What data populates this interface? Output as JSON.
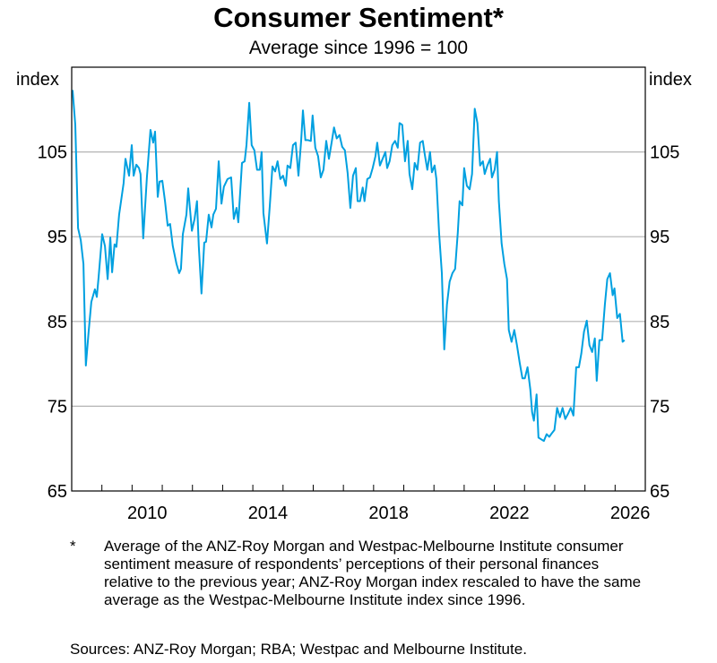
{
  "chart_data": {
    "type": "line",
    "title": "Consumer Sentiment*",
    "subtitle": "Average since 1996 = 100",
    "ylabel_left": "index",
    "ylabel_right": "index",
    "xlim": [
      2008,
      2027
    ],
    "ylim": [
      65,
      115
    ],
    "yticks": [
      65,
      75,
      85,
      95,
      105
    ],
    "xtick_labels": [
      "2010",
      "2014",
      "2018",
      "2022",
      "2026"
    ],
    "grid": true,
    "line_color": "#00a0e0",
    "series": [
      {
        "x": [
          2008.03,
          2008.12,
          2008.21,
          2008.3,
          2008.39,
          2008.47,
          2008.56,
          2008.65,
          2008.77,
          2008.83,
          2008.89,
          2009.01,
          2009.1,
          2009.19,
          2009.28,
          2009.34,
          2009.42,
          2009.48,
          2009.57,
          2009.72,
          2009.78,
          2009.9,
          2009.99,
          2010.05,
          2010.14,
          2010.23,
          2010.28,
          2010.37,
          2010.49,
          2010.61,
          2010.7,
          2010.76,
          2010.85,
          2010.91,
          2011.0,
          2011.09,
          2011.18,
          2011.26,
          2011.35,
          2011.47,
          2011.56,
          2011.62,
          2011.68,
          2011.8,
          2011.86,
          2011.98,
          2012.07,
          2012.15,
          2012.21,
          2012.3,
          2012.39,
          2012.45,
          2012.54,
          2012.63,
          2012.69,
          2012.78,
          2012.87,
          2012.96,
          2013.04,
          2013.16,
          2013.28,
          2013.37,
          2013.46,
          2013.52,
          2013.64,
          2013.73,
          2013.79,
          2013.88,
          2013.96,
          2014.05,
          2014.14,
          2014.23,
          2014.29,
          2014.35,
          2014.47,
          2014.56,
          2014.65,
          2014.74,
          2014.82,
          2014.91,
          2015.0,
          2015.09,
          2015.15,
          2015.24,
          2015.33,
          2015.42,
          2015.51,
          2015.6,
          2015.66,
          2015.74,
          2015.83,
          2015.92,
          2015.98,
          2016.07,
          2016.16,
          2016.25,
          2016.34,
          2016.43,
          2016.52,
          2016.61,
          2016.69,
          2016.78,
          2016.87,
          2016.96,
          2017.05,
          2017.14,
          2017.23,
          2017.32,
          2017.41,
          2017.47,
          2017.55,
          2017.64,
          2017.7,
          2017.79,
          2017.88,
          2017.97,
          2018.06,
          2018.12,
          2018.21,
          2018.3,
          2018.39,
          2018.45,
          2018.53,
          2018.62,
          2018.71,
          2018.8,
          2018.86,
          2018.95,
          2019.04,
          2019.13,
          2019.19,
          2019.28,
          2019.36,
          2019.45,
          2019.54,
          2019.63,
          2019.69,
          2019.78,
          2019.87,
          2019.93,
          2020.02,
          2020.08,
          2020.17,
          2020.26,
          2020.34,
          2020.43,
          2020.52,
          2020.61,
          2020.7,
          2020.79,
          2020.85,
          2020.94,
          2021.0,
          2021.09,
          2021.18,
          2021.26,
          2021.35,
          2021.44,
          2021.53,
          2021.62,
          2021.68,
          2021.77,
          2021.86,
          2021.92,
          2022.01,
          2022.09,
          2022.15,
          2022.24,
          2022.33,
          2022.42,
          2022.48,
          2022.57,
          2022.66,
          2022.75,
          2022.84,
          2022.93,
          2023.01,
          2023.1,
          2023.19,
          2023.25,
          2023.31,
          2023.4,
          2023.46,
          2023.55,
          2023.64,
          2023.73,
          2023.82,
          2023.9,
          2023.99,
          2024.08,
          2024.17,
          2024.26,
          2024.35,
          2024.44,
          2024.53,
          2024.62,
          2024.71,
          2024.8,
          2024.88,
          2024.97,
          2025.06,
          2025.15,
          2025.24,
          2025.33,
          2025.39,
          2025.48,
          2025.57,
          2025.66,
          2025.74,
          2025.83,
          2025.92,
          2025.98,
          2026.07,
          2026.16,
          2026.25,
          2026.31
        ],
        "y": [
          112.3,
          108.2,
          96.0,
          94.6,
          91.8,
          79.8,
          83.8,
          87.3,
          88.8,
          87.9,
          90.2,
          95.3,
          93.9,
          90.0,
          94.9,
          90.8,
          94.1,
          93.8,
          97.6,
          101.3,
          104.2,
          102.2,
          105.8,
          102.2,
          103.5,
          103.1,
          102.4,
          94.8,
          102.0,
          107.6,
          106.1,
          107.4,
          99.7,
          101.5,
          101.6,
          99.2,
          96.3,
          96.5,
          93.9,
          91.8,
          90.7,
          91.2,
          95.3,
          97.6,
          100.7,
          95.7,
          97.1,
          99.2,
          93.9,
          88.3,
          94.3,
          94.4,
          97.6,
          96.1,
          97.6,
          98.3,
          103.9,
          98.9,
          100.9,
          101.8,
          102.0,
          97.1,
          98.4,
          96.7,
          103.7,
          103.9,
          105.8,
          110.8,
          105.8,
          105.2,
          102.9,
          102.9,
          105.0,
          97.8,
          94.2,
          98.6,
          103.3,
          102.7,
          103.9,
          101.8,
          102.2,
          101.0,
          103.4,
          103.1,
          105.8,
          106.1,
          102.2,
          106.3,
          109.9,
          106.4,
          106.4,
          106.3,
          109.3,
          105.5,
          104.5,
          102.0,
          102.9,
          106.3,
          104.2,
          106.1,
          107.9,
          106.6,
          107.0,
          105.6,
          105.2,
          102.5,
          98.4,
          102.2,
          103.1,
          99.2,
          99.2,
          100.8,
          99.2,
          101.8,
          102.0,
          103.1,
          104.5,
          106.1,
          103.4,
          104.2,
          105.0,
          103.1,
          103.9,
          105.8,
          106.3,
          105.5,
          108.4,
          108.2,
          103.9,
          106.3,
          102.4,
          100.6,
          103.7,
          102.9,
          106.1,
          106.3,
          104.8,
          102.9,
          105.0,
          102.6,
          103.4,
          101.8,
          95.5,
          90.7,
          81.7,
          87.0,
          89.7,
          90.7,
          91.2,
          95.5,
          99.2,
          98.7,
          103.1,
          101.0,
          100.6,
          102.4,
          110.1,
          108.4,
          103.4,
          103.9,
          102.4,
          103.4,
          104.2,
          102.0,
          102.9,
          105.0,
          99.2,
          94.2,
          91.8,
          90.0,
          84.0,
          82.6,
          84.0,
          82.2,
          80.1,
          78.3,
          78.3,
          79.6,
          77.0,
          74.3,
          73.3,
          76.4,
          71.3,
          71.1,
          70.9,
          71.7,
          71.4,
          71.8,
          72.2,
          74.8,
          73.7,
          74.8,
          73.5,
          74.1,
          74.8,
          73.9,
          79.6,
          79.6,
          81.2,
          83.8,
          85.1,
          82.2,
          81.4,
          83.0,
          78.0,
          82.8,
          82.8,
          87.0,
          90.0,
          90.7,
          88.1,
          88.9,
          85.4,
          85.9,
          82.6,
          82.8
        ]
      }
    ]
  },
  "footnote": {
    "marker": "*",
    "text": "Average of the ANZ-Roy Morgan and Westpac-Melbourne Institute consumer sentiment measure of respondents’ perceptions of their personal finances relative to the previous year; ANZ-Roy Morgan index rescaled to have the same average as the Westpac-Melbourne Institute index since 1996."
  },
  "sources": "Sources: ANZ-Roy Morgan; RBA; Westpac and Melbourne Institute."
}
